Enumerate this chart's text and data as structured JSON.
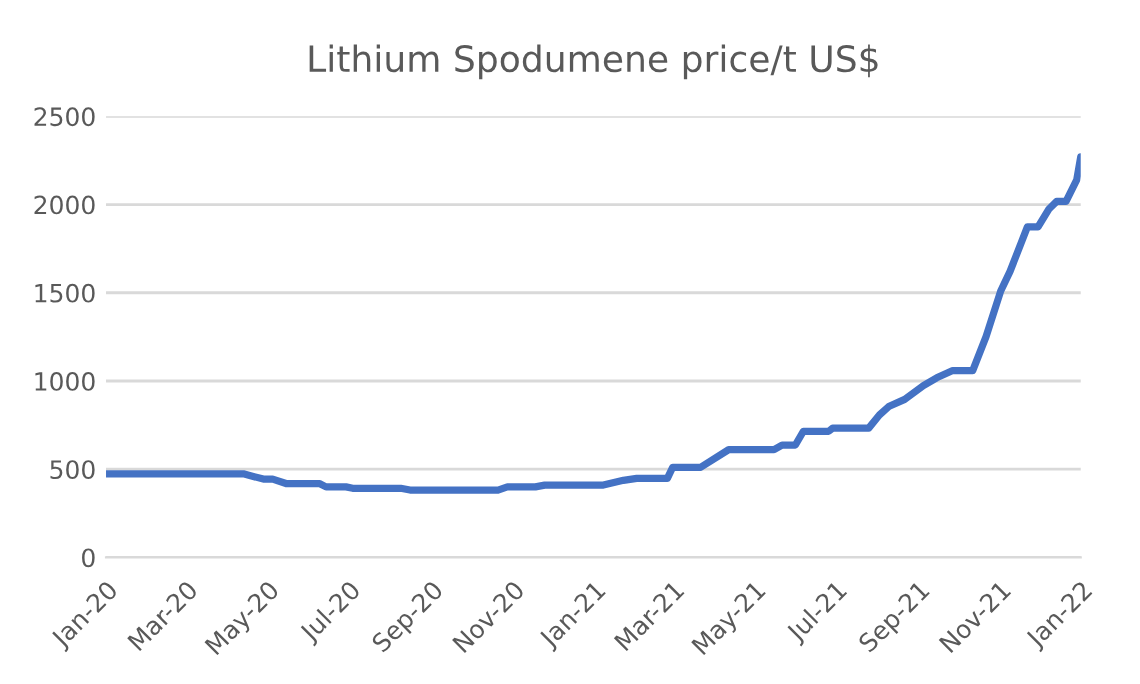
{
  "chart_data": {
    "type": "line",
    "title": "Lithium Spodumene price/t US$",
    "x": [
      "2020-01-01",
      "2020-04-13",
      "2020-04-28",
      "2020-05-05",
      "2020-05-15",
      "2020-06-09",
      "2020-06-14",
      "2020-06-29",
      "2020-07-04",
      "2020-08-09",
      "2020-08-16",
      "2020-10-21",
      "2020-10-28",
      "2020-11-18",
      "2020-11-25",
      "2021-01-08",
      "2021-01-23",
      "2021-02-02",
      "2021-02-25",
      "2021-03-01",
      "2021-03-22",
      "2021-04-12",
      "2021-05-16",
      "2021-05-22",
      "2021-06-01",
      "2021-06-07",
      "2021-06-26",
      "2021-06-29",
      "2021-07-26",
      "2021-08-03",
      "2021-08-10",
      "2021-08-22",
      "2021-09-05",
      "2021-09-15",
      "2021-09-27",
      "2021-10-12",
      "2021-10-22",
      "2021-11-02",
      "2021-11-09",
      "2021-11-22",
      "2021-11-30",
      "2021-12-08",
      "2021-12-14",
      "2021-12-21",
      "2021-12-29",
      "2022-01-01"
    ],
    "series": [
      {
        "color": "#4472c4",
        "values": [
          474,
          474,
          444,
          444,
          419,
          419,
          400,
          400,
          392,
          392,
          382,
          382,
          400,
          400,
          410,
          410,
          437,
          448,
          448,
          511,
          511,
          611,
          611,
          637,
          637,
          715,
          715,
          733,
          733,
          807,
          855,
          896,
          974,
          1018,
          1059,
          1059,
          1251,
          1510,
          1621,
          1873,
          1873,
          1973,
          2018,
          2018,
          2140,
          2270
        ]
      }
    ],
    "xlim": [
      "2020-01-01",
      "2022-01-01"
    ],
    "xticks": [
      {
        "value": "2020-01-01",
        "label": "Jan-20"
      },
      {
        "value": "2020-03-01",
        "label": "Mar-20"
      },
      {
        "value": "2020-05-01",
        "label": "May-20"
      },
      {
        "value": "2020-07-01",
        "label": "Jul-20"
      },
      {
        "value": "2020-09-01",
        "label": "Sep-20"
      },
      {
        "value": "2020-11-01",
        "label": "Nov-20"
      },
      {
        "value": "2021-01-01",
        "label": "Jan-21"
      },
      {
        "value": "2021-03-01",
        "label": "Mar-21"
      },
      {
        "value": "2021-05-01",
        "label": "May-21"
      },
      {
        "value": "2021-07-01",
        "label": "Jul-21"
      },
      {
        "value": "2021-09-01",
        "label": "Sep-21"
      },
      {
        "value": "2021-11-01",
        "label": "Nov-21"
      },
      {
        "value": "2022-01-01",
        "label": "Jan-22"
      }
    ],
    "ylim": [
      0,
      2500
    ],
    "yticks": [
      0,
      500,
      1000,
      1500,
      2000,
      2500
    ],
    "grid": "y",
    "legend": false,
    "marker": "none",
    "line_style": "solid"
  }
}
